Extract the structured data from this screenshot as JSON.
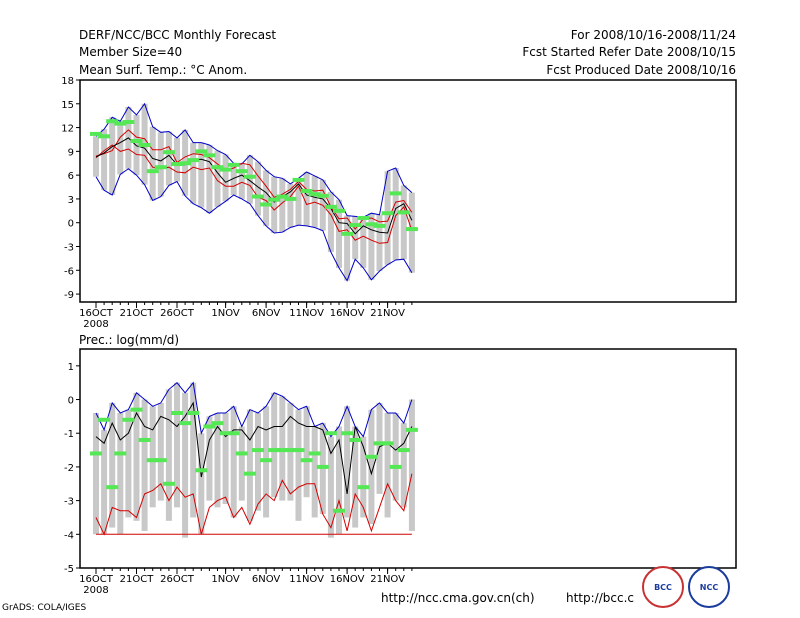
{
  "header": {
    "left": [
      "DERF/NCC/BCC Monthly Forecast",
      "Member Size=40",
      "Mean Surf. Temp.: °C Anom."
    ],
    "right": [
      "For 2008/10/16-2008/11/24",
      "Fcst Started Refer Date 2008/10/15",
      "Fcst Produced Date 2008/10/16"
    ]
  },
  "footer": {
    "url1": "http://ncc.cma.gov.cn(ch)",
    "url2": "http://bcc.c",
    "credit": "GrADS: COLA/IGES",
    "logo1": "BCC",
    "logo2": "NCC"
  },
  "colors": {
    "box": "#c8c8c8",
    "mean": "#000000",
    "spread": "#d40000",
    "extreme": "#0000c8",
    "obs": "#55e855"
  },
  "chart_data": [
    {
      "type": "box",
      "title": "Mean Surf. Temp.: °C Anom.",
      "ylim": [
        -10,
        18
      ],
      "yticks": [
        -9,
        -6,
        -3,
        0,
        3,
        6,
        9,
        12,
        15,
        18
      ],
      "xticks": [
        {
          "day": 0,
          "label": "16OCT"
        },
        {
          "day": 5,
          "label": "21OCT"
        },
        {
          "day": 10,
          "label": "26OCT"
        },
        {
          "day": 16,
          "label": "1NOV"
        },
        {
          "day": 21,
          "label": "6NOV"
        },
        {
          "day": 26,
          "label": "11NOV"
        },
        {
          "day": 31,
          "label": "16NOV"
        },
        {
          "day": 36,
          "label": "21NOV"
        }
      ],
      "year_label": "2008",
      "series": [
        {
          "name": "ensemble max",
          "values": [
            5.8,
            4.1,
            3.5,
            6.1,
            6.8,
            6.0,
            4.8,
            2.8,
            3.3,
            4.7,
            5.2,
            3.4,
            2.4,
            1.9,
            1.2,
            2.0,
            2.7,
            3.5,
            3.0,
            2.4,
            0.9,
            -0.4,
            -1.3,
            -1.2,
            -0.6,
            -0.3,
            -0.4,
            -0.6,
            -1.0,
            -3.7,
            -5.7,
            -7.3,
            -4.6,
            -5.7,
            -7.2,
            -6.1,
            -5.3,
            -4.7,
            -4.6,
            -6.3
          ]
        },
        {
          "name": "ensemble min",
          "values": [
            10.9,
            11.8,
            13.3,
            12.8,
            14.6,
            13.6,
            15.0,
            12.1,
            11.4,
            11.5,
            10.7,
            11.7,
            10.1,
            10.1,
            9.8,
            9.1,
            8.6,
            7.5,
            7.4,
            8.5,
            7.7,
            6.6,
            5.8,
            5.6,
            4.9,
            5.6,
            6.4,
            5.9,
            5.4,
            3.9,
            2.9,
            0.9,
            0.8,
            0.7,
            1.2,
            1.0,
            6.5,
            6.9,
            4.7,
            3.8
          ]
        },
        {
          "name": "mean",
          "values": [
            8.3,
            8.8,
            9.6,
            10.1,
            10.7,
            9.7,
            9.4,
            8.1,
            7.8,
            8.5,
            7.3,
            7.3,
            7.9,
            8.0,
            7.7,
            6.3,
            5.1,
            5.6,
            6.0,
            5.3,
            4.5,
            3.8,
            2.6,
            3.3,
            3.9,
            4.9,
            3.5,
            3.2,
            3.0,
            1.8,
            0.0,
            -0.1,
            -1.4,
            -0.4,
            -0.9,
            -1.2,
            -1.3,
            1.8,
            2.4,
            0.3
          ]
        },
        {
          "name": "mean+spread",
          "values": [
            8.4,
            8.7,
            9.1,
            10.8,
            11.7,
            10.8,
            10.6,
            9.2,
            9.2,
            9.6,
            7.6,
            8.3,
            8.7,
            8.6,
            8.2,
            7.4,
            6.6,
            6.9,
            7.5,
            7.3,
            5.9,
            4.6,
            3.2,
            3.6,
            4.2,
            5.2,
            4.2,
            4.0,
            4.1,
            2.0,
            0.5,
            0.6,
            -0.8,
            0.5,
            0.6,
            0.1,
            0.2,
            2.6,
            2.8,
            1.3
          ]
        },
        {
          "name": "mean-spread",
          "values": [
            8.2,
            9.1,
            9.8,
            9.0,
            9.3,
            8.6,
            8.5,
            7.0,
            6.8,
            7.0,
            6.4,
            6.3,
            7.0,
            6.7,
            6.9,
            5.3,
            4.6,
            4.6,
            5.1,
            4.7,
            3.2,
            2.8,
            1.6,
            2.5,
            3.3,
            4.6,
            2.3,
            2.6,
            2.2,
            1.0,
            -1.1,
            -0.9,
            -2.2,
            -1.7,
            -2.2,
            -2.6,
            -2.5,
            0.9,
            2.0,
            -1.0
          ]
        },
        {
          "name": "observed",
          "values": [
            11.2,
            10.9,
            12.8,
            12.5,
            12.7,
            10.3,
            9.8,
            6.5,
            7.0,
            8.9,
            7.4,
            7.5,
            7.9,
            9.0,
            8.5,
            7.0,
            6.7,
            7.3,
            6.5,
            5.8,
            3.3,
            2.3,
            2.9,
            3.3,
            3.0,
            5.4,
            4.0,
            3.6,
            3.4,
            2.0,
            1.5,
            -1.4,
            -0.3,
            0.6,
            -0.2,
            -0.4,
            1.2,
            3.7,
            1.3,
            -0.8
          ]
        }
      ]
    },
    {
      "type": "box",
      "title": "Prec.: log(mm/d)",
      "ylim": [
        -5,
        1.5
      ],
      "yticks": [
        -5,
        -4,
        -3,
        -2,
        -1,
        0,
        1
      ],
      "xticks": [
        {
          "day": 0,
          "label": "16OCT"
        },
        {
          "day": 5,
          "label": "21OCT"
        },
        {
          "day": 10,
          "label": "26OCT"
        },
        {
          "day": 16,
          "label": "1NOV"
        },
        {
          "day": 21,
          "label": "6NOV"
        },
        {
          "day": 26,
          "label": "11NOV"
        },
        {
          "day": 31,
          "label": "16NOV"
        },
        {
          "day": 36,
          "label": "21NOV"
        }
      ],
      "year_label": "2008",
      "series": [
        {
          "name": "ensemble max",
          "values": [
            -0.4,
            -0.9,
            -0.1,
            -0.4,
            -0.3,
            0.2,
            0.0,
            -0.2,
            -0.1,
            0.3,
            0.5,
            0.2,
            0.5,
            -1.0,
            -0.5,
            -0.4,
            -0.4,
            -0.2,
            -0.8,
            -0.3,
            -0.4,
            -0.2,
            0.2,
            0.1,
            -0.1,
            -0.3,
            -0.2,
            -0.8,
            -0.7,
            -1.1,
            -0.8,
            -0.2,
            -0.8,
            -1.1,
            -0.3,
            -0.1,
            -0.4,
            -0.4,
            -0.7,
            0.0
          ]
        },
        {
          "name": "ensemble min",
          "values": [
            -4.0,
            -4.0,
            -3.8,
            -4.0,
            -3.5,
            -3.6,
            -3.9,
            -3.2,
            -3.0,
            -3.6,
            -3.2,
            -4.1,
            -3.5,
            -4.0,
            -3.0,
            -3.2,
            -3.1,
            -3.5,
            -3.0,
            -3.6,
            -3.3,
            -3.5,
            -2.9,
            -3.0,
            -3.0,
            -3.6,
            -2.9,
            -3.5,
            -3.4,
            -4.1,
            -4.0,
            -3.5,
            -3.8,
            -3.5,
            -3.7,
            -2.8,
            -3.5,
            -3.0,
            -3.2,
            -3.9
          ]
        },
        {
          "name": "mean",
          "values": [
            -1.1,
            -1.3,
            -0.7,
            -1.2,
            -1.0,
            -0.4,
            -0.8,
            -0.9,
            -0.5,
            -0.6,
            -0.8,
            -0.5,
            -0.1,
            -2.3,
            -1.2,
            -0.8,
            -1.1,
            -0.9,
            -0.9,
            -1.2,
            -0.8,
            -0.9,
            -0.8,
            -0.8,
            -0.5,
            -0.7,
            -0.8,
            -0.8,
            -0.9,
            -1.6,
            -1.2,
            -2.8,
            -0.8,
            -1.4,
            -2.2,
            -1.4,
            -1.3,
            -1.5,
            -1.3,
            -0.8
          ]
        },
        {
          "name": "mean-spread",
          "values": [
            -3.5,
            -4.0,
            -3.2,
            -3.3,
            -3.3,
            -3.5,
            -2.8,
            -2.7,
            -2.5,
            -3.0,
            -2.6,
            -2.9,
            -2.8,
            -4.0,
            -3.2,
            -3.0,
            -2.9,
            -3.5,
            -3.2,
            -3.7,
            -3.1,
            -2.8,
            -3.0,
            -2.4,
            -2.8,
            -2.6,
            -2.5,
            -2.5,
            -3.4,
            -3.8,
            -3.0,
            -3.9,
            -2.8,
            -3.2,
            -3.9,
            -3.2,
            -2.5,
            -3.0,
            -3.3,
            -2.2
          ]
        },
        {
          "name": "observed",
          "values": [
            -1.6,
            -0.6,
            -2.6,
            -1.6,
            -0.6,
            -0.3,
            -1.2,
            -1.8,
            -1.8,
            -2.5,
            -0.4,
            -0.7,
            -0.4,
            -2.1,
            -0.8,
            -0.7,
            -1.0,
            -1.0,
            -1.6,
            -2.2,
            -1.5,
            -1.8,
            -1.5,
            -1.5,
            -1.5,
            -1.5,
            -1.8,
            -1.6,
            -2.0,
            -1.0,
            -3.3,
            -1.0,
            -1.2,
            -2.6,
            -1.7,
            -1.3,
            -1.3,
            -2.0,
            -1.5,
            -0.9
          ]
        }
      ]
    }
  ]
}
